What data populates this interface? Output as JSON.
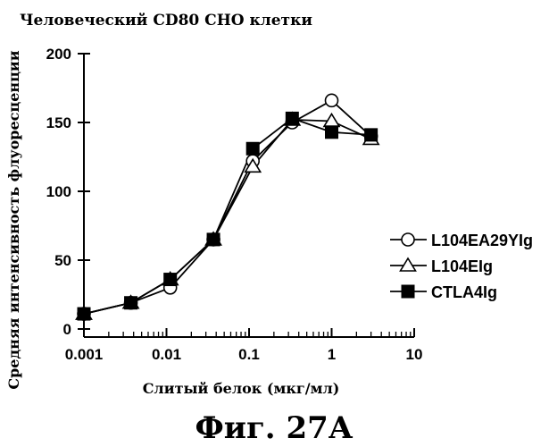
{
  "figure_label": "Фиг. 27А",
  "chart_data": {
    "type": "line",
    "title": "Человеческий CD80 CHO клетки",
    "xlabel": "Слитый белок (мкг/мл)",
    "ylabel": "Средняя интенсивность флуоресценции",
    "x_scale": "log",
    "xlim": [
      0.001,
      10
    ],
    "ylim": [
      0,
      200
    ],
    "x_ticks": [
      0.001,
      0.01,
      0.1,
      1,
      10
    ],
    "x_tick_labels": [
      "0.001",
      "0.01",
      "0.1",
      "1",
      "10"
    ],
    "y_ticks": [
      0,
      50,
      100,
      150,
      200
    ],
    "y_tick_labels": [
      "0",
      "50",
      "100",
      "150",
      "200"
    ],
    "grid": false,
    "legend_position": "right",
    "x": [
      0.001,
      0.0037,
      0.0111,
      0.037,
      0.111,
      0.333,
      1,
      3
    ],
    "series": [
      {
        "name": "L104EA29YIg",
        "marker": "circle-open",
        "values": [
          11,
          19,
          30,
          65,
          122,
          150,
          166,
          140
        ]
      },
      {
        "name": "L104EIg",
        "marker": "triangle-open",
        "values": [
          11,
          19,
          36,
          65,
          118,
          152,
          151,
          138
        ]
      },
      {
        "name": "CTLA4Ig",
        "marker": "square-filled",
        "values": [
          11,
          19,
          36,
          65,
          131,
          153,
          143,
          141
        ]
      }
    ]
  }
}
